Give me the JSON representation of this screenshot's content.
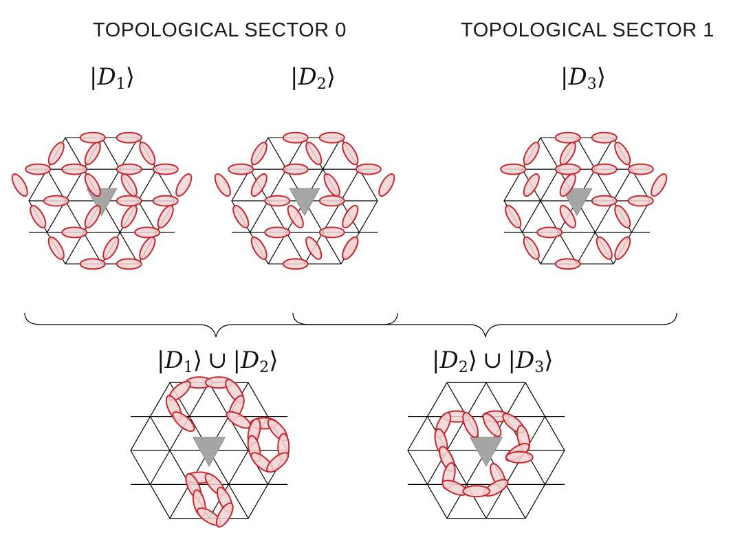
{
  "sector_labels": {
    "sector0": "TOPOLOGICAL SECTOR 0",
    "sector1": "TOPOLOGICAL SECTOR 1"
  },
  "states": {
    "d1": {
      "letter": "D",
      "index": "1"
    },
    "d2": {
      "letter": "D",
      "index": "2"
    },
    "d3": {
      "letter": "D",
      "index": "3"
    }
  },
  "union_symbol": "∪",
  "ket_brackets": {
    "open": "|",
    "close": "⟩"
  },
  "colors": {
    "dimer_stroke": "#c8242b",
    "dimer_fill": "#f2d3d4",
    "lattice": "#000000",
    "defect_triangle": "#a6a6a6"
  },
  "panels": [
    {
      "name": "lattice-d1",
      "kind": "dimer-covering"
    },
    {
      "name": "lattice-d2",
      "kind": "dimer-covering"
    },
    {
      "name": "lattice-d3",
      "kind": "dimer-covering"
    },
    {
      "name": "lattice-d1-union-d2",
      "kind": "transition-graph"
    },
    {
      "name": "lattice-d2-union-d3",
      "kind": "transition-graph"
    }
  ]
}
